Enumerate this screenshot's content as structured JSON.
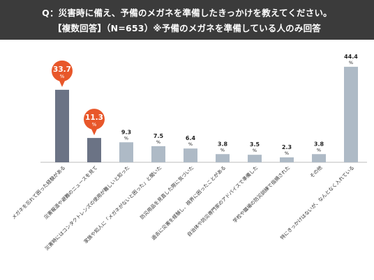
{
  "header": {
    "question": "Q：災害時に備え、予備のメガネを準備したきっかけを教えてください。",
    "subtitle": "【複数回答】（N=653）※予備のメガネを準備している人のみ回答"
  },
  "colors": {
    "header_bg": "#3b3b3b",
    "highlight_bar": "#6b7385",
    "normal_bar": "#aebac6",
    "callout": "#e8572a",
    "baseline": "#bbbbbb"
  },
  "chart_data": {
    "type": "bar",
    "categories": [
      "メガネを忘れて困った経験がある",
      "災害報道や避難のニュースを見て",
      "災害時にはコンタクトレンズの使用が難しいと知った",
      "家族や知人に「メガネがないと困った」と聞いた",
      "防災用品を見直した際に気づいた",
      "過去に災害を経験し、視界に困ったことがある",
      "自治体や防災専門家のアドバイスで準備した",
      "学校や職場の防災訓練で指摘された",
      "その他",
      "特にきっかけはないが、なんとなく入れている"
    ],
    "values": [
      33.7,
      11.3,
      9.3,
      7.5,
      6.4,
      3.8,
      3.5,
      2.3,
      3.8,
      44.4
    ],
    "value_labels": [
      "33.7",
      "11.3",
      "9.3",
      "7.5",
      "6.4",
      "3.8",
      "3.5",
      "2.3",
      "3.8",
      "44.4"
    ],
    "unit": "%",
    "highlighted": [
      true,
      true,
      false,
      false,
      false,
      false,
      false,
      false,
      false,
      false
    ],
    "ylim": [
      0,
      45
    ],
    "grid": false,
    "legend": "none"
  }
}
